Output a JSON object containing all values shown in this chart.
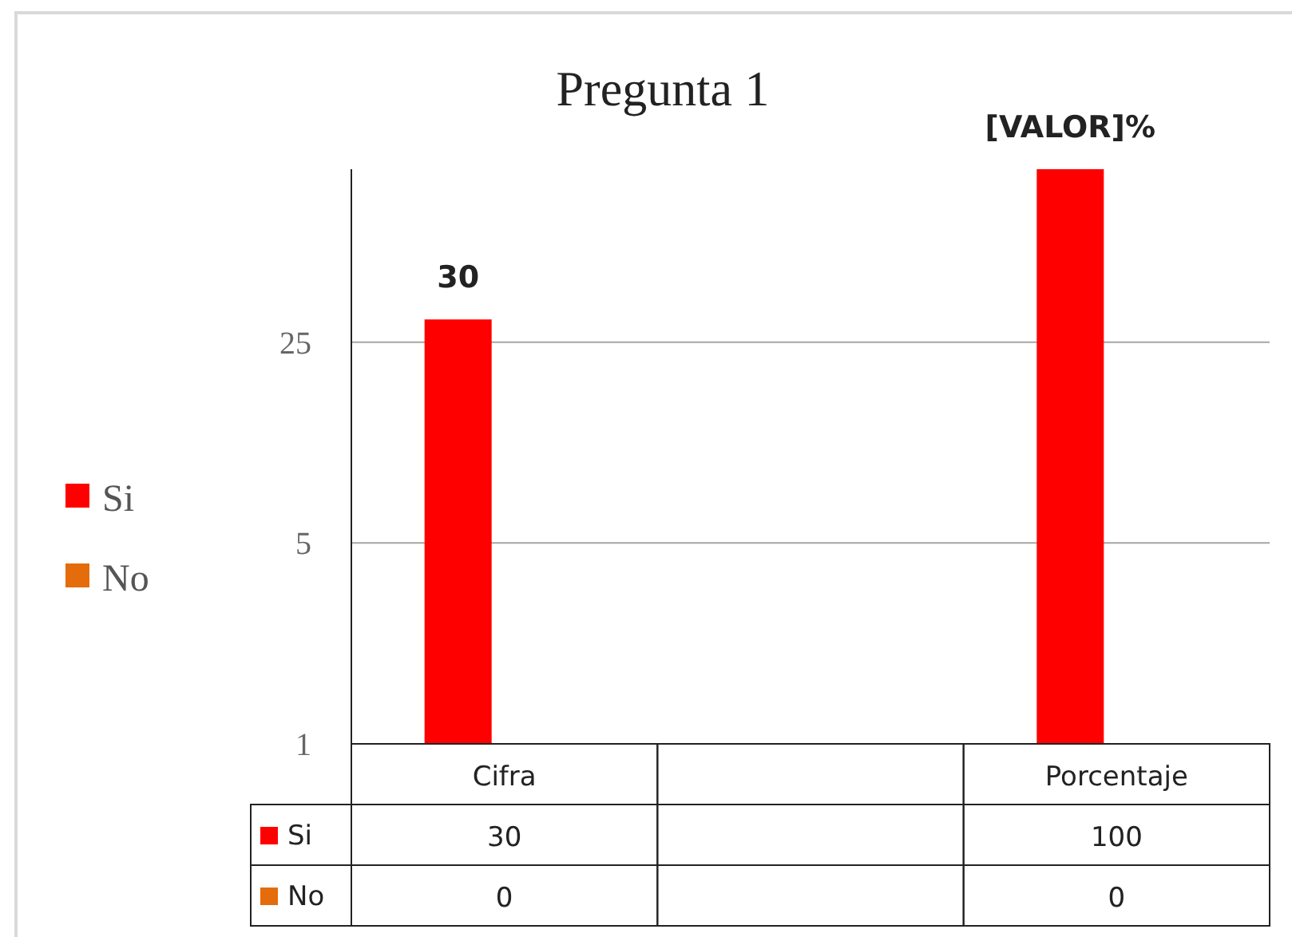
{
  "chart_data": {
    "type": "bar",
    "title": "Pregunta 1",
    "categories": [
      "Cifra",
      null,
      "Porcentaje"
    ],
    "series": [
      {
        "name": "Si",
        "color": "#ff0000",
        "values": [
          30,
          null,
          100
        ],
        "value_labels": [
          "30",
          null,
          "100"
        ]
      },
      {
        "name": "No",
        "color": "#e46c0a",
        "values": [
          null,
          null,
          null
        ],
        "value_labels": [
          "0",
          null,
          "0"
        ]
      }
    ],
    "annotations": [
      "30",
      "[VALOR]%"
    ],
    "log": "y",
    "ylim": [
      1,
      100
    ],
    "yticks": [
      1,
      5,
      25
    ],
    "grid": "y",
    "legend": "left"
  }
}
